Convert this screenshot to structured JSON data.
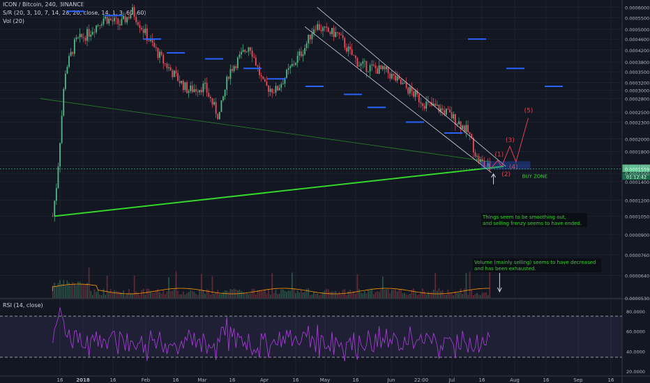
{
  "header": {
    "symbol_line": "ICON / Bitcoin, 240, BINANCE",
    "indicator_sr": "S/R (20, 3, 10, 7, 14, 28, 20, close, 14, 1, 3, 60, 60)",
    "indicator_vol": "Vol (20)",
    "indicator_rsi": "RSI (14, close)"
  },
  "price_axis": {
    "ticks": [
      "0.0006000",
      "0.0005500",
      "0.0005000",
      "0.0004600",
      "0.0004200",
      "0.0003800",
      "0.0003500",
      "0.0003200",
      "0.0003000",
      "0.0002800",
      "0.0002500",
      "0.0002300",
      "0.0002000",
      "0.0001800",
      "0.0001600",
      "0.0001500",
      "0.0001400",
      "0.0001200",
      "0.0001050",
      "0.0000900",
      "0.0000760",
      "0.0000640",
      "0.0000530"
    ],
    "current_price": "0.0001559",
    "countdown": "01:12:42"
  },
  "rsi_axis": {
    "ticks": [
      "80.0000",
      "60.0000",
      "40.0000",
      "20.0000"
    ]
  },
  "time_axis": {
    "ticks": [
      "16",
      "2018",
      "16",
      "Feb",
      "16",
      "Mar",
      "16",
      "Apr",
      "16",
      "May",
      "16",
      "Jun",
      "22:00",
      "Jul",
      "16",
      "Aug",
      "16",
      "Sep",
      "16"
    ]
  },
  "annotations": {
    "buy_zone": "BUY ZONE",
    "note_smooth_1": "Things seem to be smoothing out,",
    "note_smooth_2": " and selling frenzy seems to have ended.",
    "note_volume_1": "Volume (mainly selling) seems to have decreased",
    "note_volume_2": " and has been exhausted.",
    "wave_labels": [
      "(1)",
      "(2)",
      "(3)",
      "(4)",
      "(5)"
    ]
  },
  "colors": {
    "background": "#131722",
    "candle_up": "#53b987",
    "candle_down": "#eb4d5c",
    "trendline": "#35d52b",
    "channel": "#d1d4dc",
    "wave": "#e2404f",
    "sr_level": "#2962ff",
    "rsi_line": "#a23cd1",
    "note_text": "#35d52b"
  },
  "chart_data": {
    "type": "candlestick",
    "title": "ICON / Bitcoin, 240, BINANCE",
    "y_scale": "log",
    "ylim": [
      5.3e-05,
      0.00063
    ],
    "current_price": 0.0001559,
    "series": [
      {
        "name": "ICON / Bitcoin",
        "x": [
          "2017-12-26",
          "2017-12-28",
          "2018-01-01",
          "2018-01-06",
          "2018-01-12",
          "2018-01-20",
          "2018-01-28",
          "2018-02-03",
          "2018-02-10",
          "2018-02-18",
          "2018-02-25",
          "2018-03-02",
          "2018-03-10",
          "2018-03-17",
          "2018-03-22",
          "2018-04-01",
          "2018-04-08",
          "2018-04-14",
          "2018-04-22",
          "2018-04-28",
          "2018-05-03",
          "2018-05-08",
          "2018-05-14",
          "2018-05-20",
          "2018-05-25",
          "2018-06-01",
          "2018-06-07",
          "2018-06-13",
          "2018-06-18",
          "2018-06-25",
          "2018-07-01",
          "2018-07-06",
          "2018-07-12",
          "2018-07-17",
          "2018-07-21",
          "2018-07-25",
          "2018-07-28"
        ],
        "close": [
          0.000105,
          0.00014,
          0.00035,
          0.00045,
          0.00048,
          0.00055,
          0.00052,
          0.00058,
          0.00047,
          0.00038,
          0.00033,
          0.0003,
          0.00031,
          0.00024,
          0.00035,
          0.00044,
          0.00031,
          0.0003,
          0.00037,
          0.00043,
          0.00052,
          0.00049,
          0.00048,
          0.00041,
          0.00037,
          0.00036,
          0.00035,
          0.00032,
          0.0003,
          0.00027,
          0.00026,
          0.00025,
          0.00023,
          0.00021,
          0.00017,
          0.00016,
          0.0001559
        ]
      }
    ],
    "sr_levels": [
      0.00058,
      0.00056,
      0.00046,
      0.00041,
      0.00039,
      0.00036,
      0.00033,
      0.00031,
      0.00029,
      0.00026,
      0.00023,
      0.00021,
      0.00046,
      0.00036,
      0.00031
    ],
    "trendlines": [
      {
        "name": "support",
        "from": [
          "2017-12-27",
          0.000105
        ],
        "to": [
          "2018-08-03",
          0.000159
        ]
      },
      {
        "name": "long-descending",
        "from": [
          "2017-12-20",
          0.00028
        ],
        "to": [
          "2018-07-28",
          0.000165
        ]
      }
    ],
    "channel": {
      "upper": [
        [
          "2018-05-04",
          0.0006
        ],
        [
          "2018-08-04",
          0.000159
        ]
      ],
      "lower": [
        [
          "2018-04-28",
          0.00051
        ],
        [
          "2018-07-28",
          0.000151
        ]
      ]
    },
    "buy_zone": [
      0.000155,
      0.000166
    ],
    "projected_waves": {
      "labels": [
        "(1)",
        "(2)",
        "(3)",
        "(4)",
        "(5)"
      ],
      "path": [
        [
          "2018-07-28",
          0.000157
        ],
        [
          "2018-07-31",
          0.000167
        ],
        [
          "2018-08-02",
          0.000159
        ],
        [
          "2018-08-06",
          0.000188
        ],
        [
          "2018-08-09",
          0.000165
        ],
        [
          "2018-08-15",
          0.000238
        ]
      ]
    },
    "volume": {
      "trend": "decreasing"
    },
    "rsi": {
      "name": "RSI (14, close)",
      "ylim": [
        15,
        85
      ],
      "bands": [
        30,
        70
      ]
    }
  }
}
